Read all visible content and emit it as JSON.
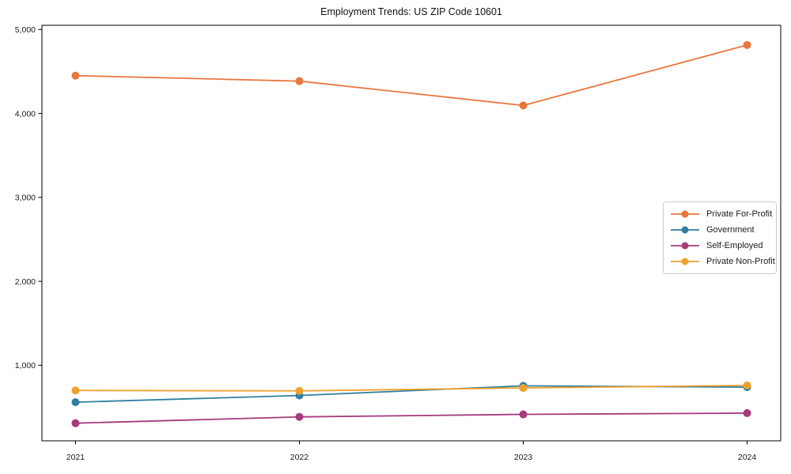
{
  "page": {
    "background": "#ffffff",
    "axis_color": "#000000",
    "text_color": "#1a1a1a",
    "legend_border_color": "#cccccc"
  },
  "chart_data": {
    "type": "line",
    "title": "Employment Trends: US ZIP Code 10601",
    "xlabel": "",
    "ylabel": "",
    "x": [
      2021,
      2022,
      2023,
      2024
    ],
    "xtick_labels": [
      "2021",
      "2022",
      "2023",
      "2024"
    ],
    "ytick_values": [
      1000,
      2000,
      3000,
      4000,
      5000
    ],
    "ytick_labels": [
      "1,000",
      "2,000",
      "3,000",
      "4,000",
      "5,000"
    ],
    "xlim": [
      2020.85,
      2024.15
    ],
    "ylim": [
      100,
      5050
    ],
    "grid": false,
    "legend_position": "center-right",
    "marker": "circle",
    "series": [
      {
        "name": "Private For-Profit",
        "color": "#e8763d",
        "values": [
          4450,
          4385,
          4095,
          4815
        ]
      },
      {
        "name": "Government",
        "color": "#2e7f9e",
        "values": [
          560,
          640,
          755,
          740
        ]
      },
      {
        "name": "Self-Employed",
        "color": "#a53a7d",
        "values": [
          310,
          385,
          415,
          430
        ]
      },
      {
        "name": "Private Non-Profit",
        "color": "#efa02e",
        "values": [
          700,
          695,
          730,
          760
        ]
      }
    ]
  }
}
